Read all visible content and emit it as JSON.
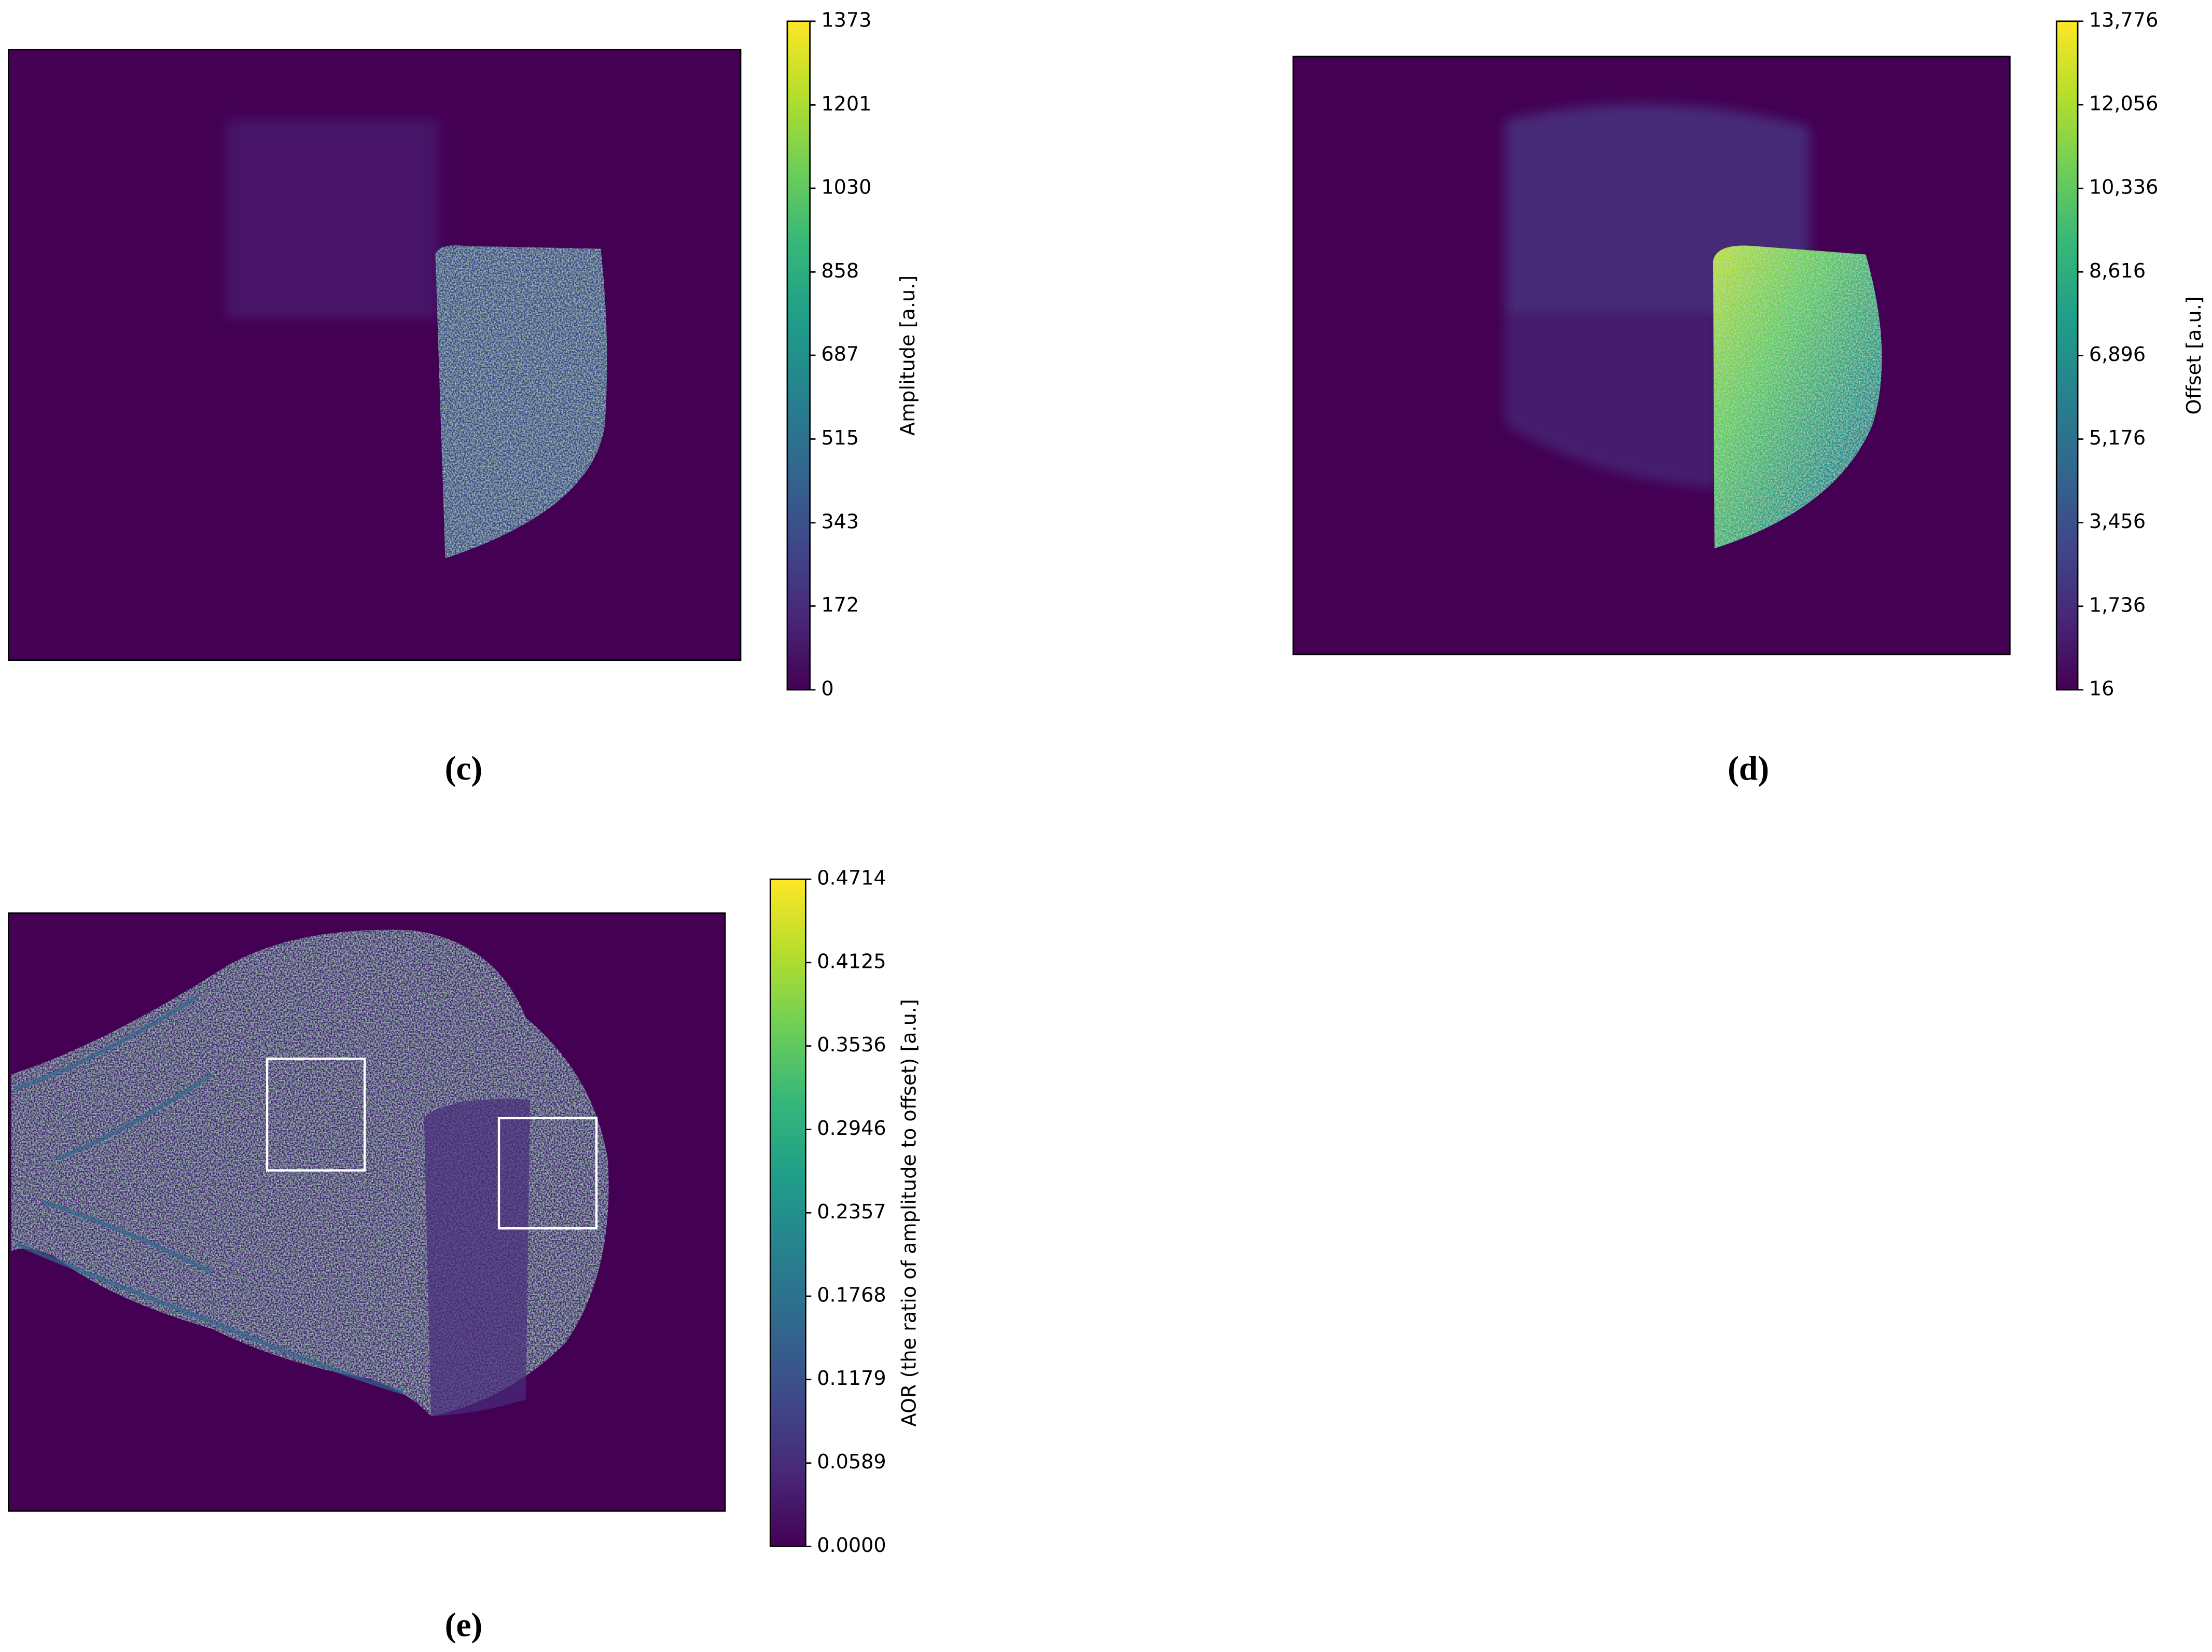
{
  "chart_data": [
    {
      "type": "heatmap",
      "panel_label": "(c)",
      "colorbar_label": "Amplitude [a.u.]",
      "colormap": "viridis",
      "ylim": [
        0,
        1373
      ],
      "yticks": [
        0,
        172,
        343,
        515,
        687,
        858,
        1030,
        1201,
        1373
      ]
    },
    {
      "type": "heatmap",
      "panel_label": "(d)",
      "colorbar_label": "Offset [a.u.]",
      "colormap": "viridis",
      "ylim": [
        16,
        13776
      ],
      "yticks": [
        16,
        {
          "value": 1736,
          "label": "1,736"
        },
        {
          "value": 3456,
          "label": "3,456"
        },
        {
          "value": 5176,
          "label": "5,176"
        },
        {
          "value": 6896,
          "label": "6,896"
        },
        {
          "value": 8616,
          "label": "8,616"
        },
        {
          "value": 10336,
          "label": "10,336"
        },
        {
          "value": 12056,
          "label": "12,056"
        },
        {
          "value": 13776,
          "label": "13,776"
        }
      ]
    },
    {
      "type": "heatmap",
      "panel_label": "(e)",
      "colorbar_label": "AOR (the ratio of amplitude to offset) [a.u.]",
      "colormap": "viridis",
      "ylim": [
        0,
        0.4714
      ],
      "yticks": [
        {
          "value": 0,
          "label": "0.0000"
        },
        0.0589,
        0.1179,
        0.1768,
        0.2357,
        0.2946,
        0.3536,
        0.4125,
        0.4714
      ]
    }
  ]
}
